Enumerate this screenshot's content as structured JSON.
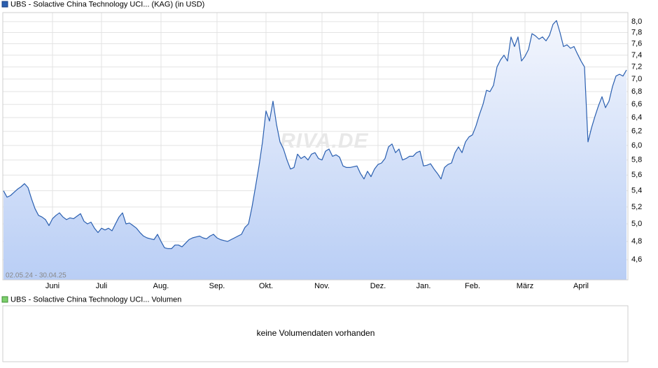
{
  "chart_data": {
    "type": "area",
    "log_scale": true,
    "grid": true,
    "date_range": "02.05.24 - 30.04.25",
    "watermark": "ARIVA.DE",
    "ylim": [
      4.39,
      8.17
    ],
    "yticks": [
      {
        "value": 4.6,
        "label": "4,6"
      },
      {
        "value": 4.8,
        "label": "4,8"
      },
      {
        "value": 5.0,
        "label": "5,0"
      },
      {
        "value": 5.2,
        "label": "5,2"
      },
      {
        "value": 5.4,
        "label": "5,4"
      },
      {
        "value": 5.6,
        "label": "5,6"
      },
      {
        "value": 5.8,
        "label": "5,8"
      },
      {
        "value": 6.0,
        "label": "6,0"
      },
      {
        "value": 6.2,
        "label": "6,2"
      },
      {
        "value": 6.4,
        "label": "6,4"
      },
      {
        "value": 6.6,
        "label": "6,6"
      },
      {
        "value": 6.8,
        "label": "6,8"
      },
      {
        "value": 7.0,
        "label": "7,0"
      },
      {
        "value": 7.2,
        "label": "7,2"
      },
      {
        "value": 7.4,
        "label": "7,4"
      },
      {
        "value": 7.6,
        "label": "7,6"
      },
      {
        "value": 7.8,
        "label": "7,8"
      },
      {
        "value": 8.0,
        "label": "8,0"
      }
    ],
    "categories": [
      null,
      null,
      null,
      null,
      null,
      null,
      null,
      null,
      null,
      null,
      null,
      null,
      null,
      null,
      "Juni",
      null,
      null,
      null,
      null,
      null,
      null,
      null,
      null,
      null,
      null,
      null,
      null,
      null,
      "Juli",
      null,
      null,
      null,
      null,
      null,
      null,
      null,
      null,
      null,
      null,
      null,
      null,
      null,
      null,
      null,
      null,
      "Aug.",
      null,
      null,
      null,
      null,
      null,
      null,
      null,
      null,
      null,
      null,
      null,
      null,
      null,
      null,
      null,
      "Sep.",
      null,
      null,
      null,
      null,
      null,
      null,
      null,
      null,
      null,
      null,
      null,
      null,
      null,
      "Okt.",
      null,
      null,
      null,
      null,
      null,
      null,
      null,
      null,
      null,
      null,
      null,
      null,
      null,
      null,
      null,
      "Nov.",
      null,
      null,
      null,
      null,
      null,
      null,
      null,
      null,
      null,
      null,
      null,
      null,
      null,
      null,
      null,
      "Dez.",
      null,
      null,
      null,
      null,
      null,
      null,
      null,
      null,
      null,
      null,
      null,
      null,
      "Jan.",
      null,
      null,
      null,
      null,
      null,
      null,
      null,
      null,
      null,
      null,
      null,
      null,
      null,
      "Feb.",
      null,
      null,
      null,
      null,
      null,
      null,
      null,
      null,
      null,
      null,
      null,
      null,
      null,
      null,
      "März",
      null,
      null,
      null,
      null,
      null,
      null,
      null,
      null,
      null,
      null,
      null,
      null,
      null,
      null,
      null,
      "April",
      null,
      null,
      null,
      null,
      null,
      null,
      null,
      null,
      null,
      null,
      null,
      null,
      null
    ],
    "series": [
      {
        "name": "UBS - Solactive China Technology UCI... (KAG) (in USD)",
        "color": "#2a5fb0",
        "values": [
          5.4,
          5.32,
          5.34,
          5.38,
          5.42,
          5.45,
          5.49,
          5.44,
          5.3,
          5.18,
          5.1,
          5.08,
          5.05,
          4.98,
          5.06,
          5.1,
          5.13,
          5.08,
          5.05,
          5.07,
          5.06,
          5.09,
          5.12,
          5.03,
          5.0,
          5.02,
          4.95,
          4.9,
          4.95,
          4.93,
          4.95,
          4.92,
          5.0,
          5.08,
          5.13,
          5.0,
          5.01,
          4.98,
          4.95,
          4.9,
          4.86,
          4.84,
          4.83,
          4.82,
          4.88,
          4.8,
          4.73,
          4.72,
          4.72,
          4.76,
          4.76,
          4.74,
          4.78,
          4.82,
          4.84,
          4.85,
          4.86,
          4.84,
          4.83,
          4.86,
          4.88,
          4.84,
          4.82,
          4.81,
          4.8,
          4.82,
          4.84,
          4.86,
          4.88,
          4.96,
          5.0,
          5.2,
          5.45,
          5.72,
          6.05,
          6.5,
          6.35,
          6.65,
          6.3,
          6.05,
          5.95,
          5.8,
          5.68,
          5.7,
          5.88,
          5.82,
          5.85,
          5.8,
          5.88,
          5.9,
          5.82,
          5.8,
          5.92,
          5.95,
          5.85,
          5.87,
          5.84,
          5.72,
          5.7,
          5.7,
          5.71,
          5.72,
          5.62,
          5.55,
          5.65,
          5.58,
          5.68,
          5.74,
          5.76,
          5.82,
          5.98,
          6.02,
          5.9,
          5.95,
          5.8,
          5.82,
          5.85,
          5.85,
          5.9,
          5.92,
          5.72,
          5.73,
          5.75,
          5.68,
          5.62,
          5.55,
          5.7,
          5.74,
          5.76,
          5.9,
          5.98,
          5.9,
          6.05,
          6.12,
          6.15,
          6.28,
          6.45,
          6.6,
          6.82,
          6.8,
          6.9,
          7.2,
          7.32,
          7.4,
          7.3,
          7.72,
          7.55,
          7.72,
          7.3,
          7.38,
          7.5,
          7.78,
          7.74,
          7.68,
          7.72,
          7.65,
          7.75,
          7.95,
          8.02,
          7.8,
          7.55,
          7.58,
          7.52,
          7.55,
          7.42,
          7.3,
          7.2,
          6.05,
          6.25,
          6.42,
          6.58,
          6.72,
          6.55,
          6.65,
          6.88,
          7.05,
          7.08,
          7.05,
          7.15
        ]
      }
    ]
  },
  "volume_panel": {
    "title": "UBS - Solactive China Technology UCI... Volumen",
    "message": "keine Volumendaten vorhanden"
  }
}
